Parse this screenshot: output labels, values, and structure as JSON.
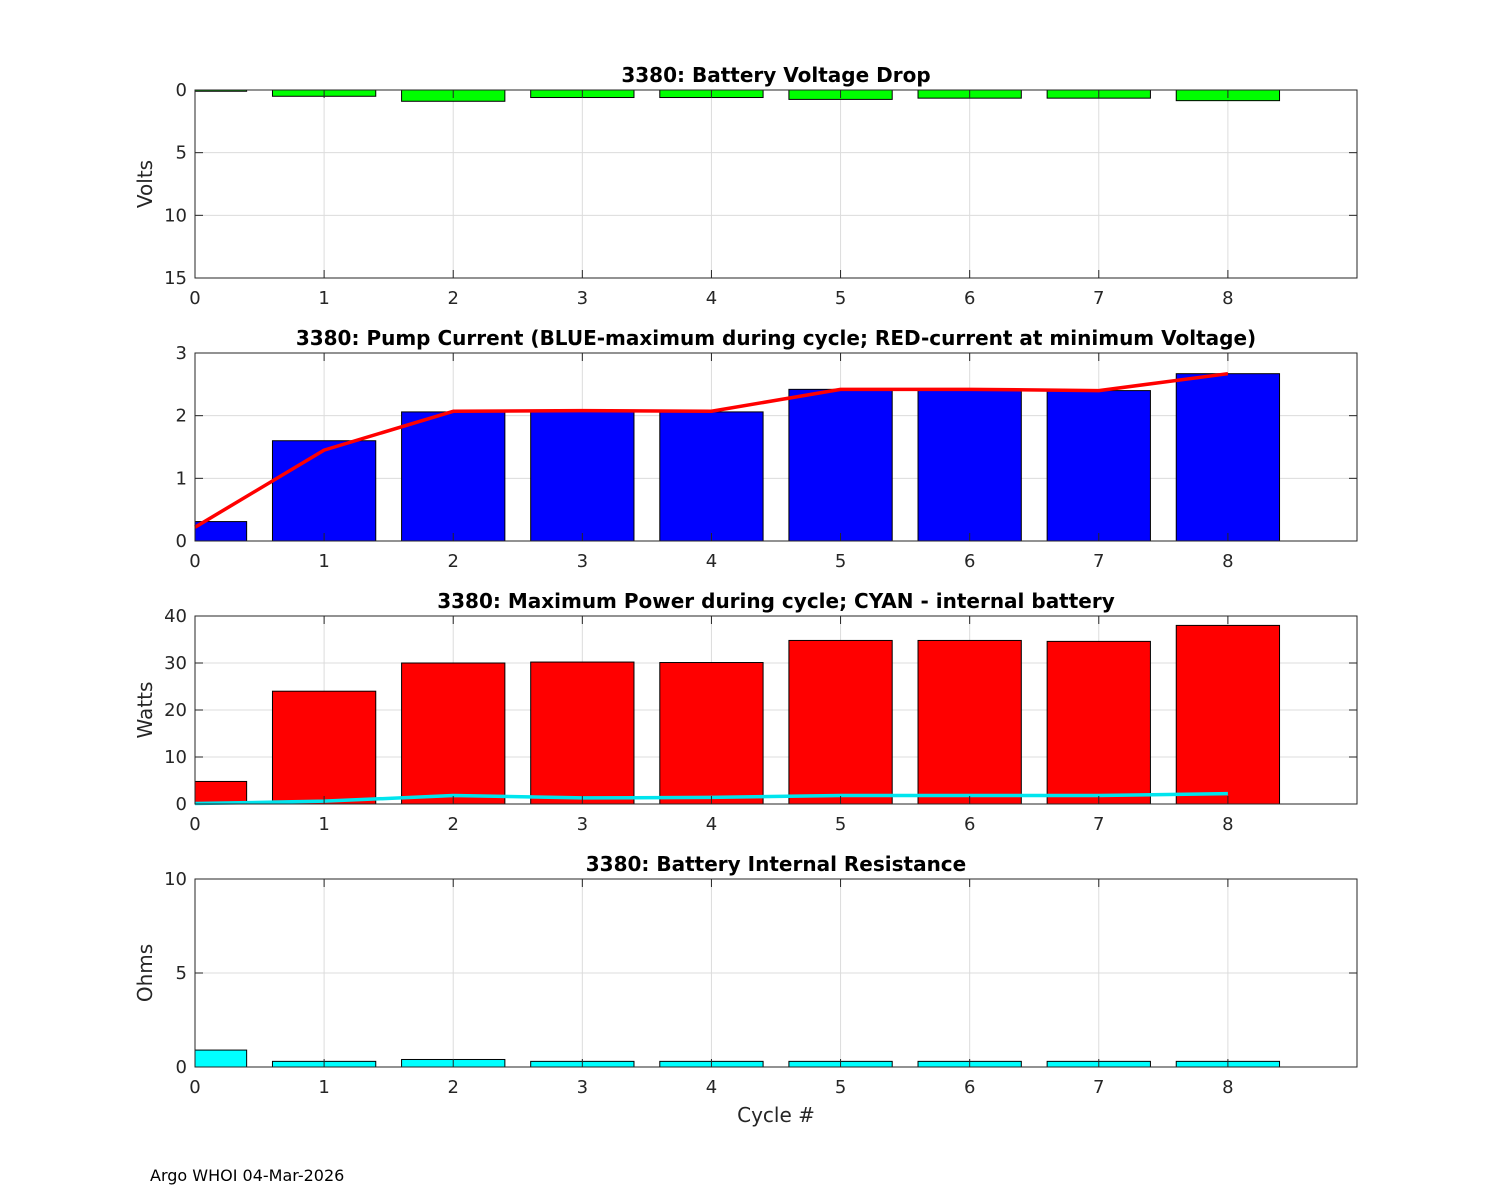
{
  "footer": "Argo WHOI 04-Mar-2026",
  "chart_data": [
    {
      "type": "bar",
      "title": "3380: Battery Voltage Drop",
      "xlabel": "",
      "ylabel": "Volts",
      "y_reversed": true,
      "xlim": [
        0,
        9
      ],
      "ylim": [
        0,
        15
      ],
      "xticks": [
        0,
        1,
        2,
        3,
        4,
        5,
        6,
        7,
        8
      ],
      "yticks": [
        0,
        5,
        10,
        15
      ],
      "bar_color": "#00ff00",
      "categories": [
        0,
        1,
        2,
        3,
        4,
        5,
        6,
        7,
        8
      ],
      "values": [
        0.1,
        0.5,
        0.9,
        0.6,
        0.6,
        0.75,
        0.65,
        0.65,
        0.85
      ],
      "lines": []
    },
    {
      "type": "bar",
      "title": "3380: Pump Current (BLUE-maximum during cycle; RED-current at minimum Voltage)",
      "xlabel": "",
      "ylabel": "",
      "y_reversed": false,
      "xlim": [
        0,
        9
      ],
      "ylim": [
        0,
        3
      ],
      "xticks": [
        0,
        1,
        2,
        3,
        4,
        5,
        6,
        7,
        8
      ],
      "yticks": [
        0,
        1,
        2,
        3
      ],
      "bar_color": "#0000ff",
      "categories": [
        0,
        1,
        2,
        3,
        4,
        5,
        6,
        7,
        8
      ],
      "values": [
        0.31,
        1.6,
        2.06,
        2.07,
        2.06,
        2.42,
        2.42,
        2.4,
        2.67
      ],
      "lines": [
        {
          "name": "current at minimum Voltage",
          "color": "#ff0000",
          "x": [
            0,
            1,
            2,
            3,
            4,
            5,
            6,
            7,
            8
          ],
          "values": [
            0.22,
            1.45,
            2.07,
            2.08,
            2.07,
            2.42,
            2.42,
            2.4,
            2.67
          ]
        }
      ]
    },
    {
      "type": "bar",
      "title": "3380: Maximum Power during cycle; CYAN - internal battery",
      "xlabel": "",
      "ylabel": "Watts",
      "y_reversed": false,
      "xlim": [
        0,
        9
      ],
      "ylim": [
        0,
        40
      ],
      "xticks": [
        0,
        1,
        2,
        3,
        4,
        5,
        6,
        7,
        8
      ],
      "yticks": [
        0,
        10,
        20,
        30,
        40
      ],
      "bar_color": "#ff0000",
      "categories": [
        0,
        1,
        2,
        3,
        4,
        5,
        6,
        7,
        8
      ],
      "values": [
        4.8,
        24,
        30,
        30.2,
        30.1,
        34.8,
        34.8,
        34.6,
        38
      ],
      "lines": [
        {
          "name": "internal battery",
          "color": "#00e5ee",
          "x": [
            0,
            1,
            2,
            3,
            4,
            5,
            6,
            7,
            8
          ],
          "values": [
            0.1,
            0.6,
            1.8,
            1.3,
            1.4,
            1.8,
            1.8,
            1.8,
            2.2
          ]
        }
      ]
    },
    {
      "type": "bar",
      "title": "3380: Battery Internal Resistance",
      "xlabel": "Cycle #",
      "ylabel": "Ohms",
      "y_reversed": false,
      "xlim": [
        0,
        9
      ],
      "ylim": [
        0,
        10
      ],
      "xticks": [
        0,
        1,
        2,
        3,
        4,
        5,
        6,
        7,
        8
      ],
      "yticks": [
        0,
        5,
        10
      ],
      "bar_color": "#00ffff",
      "categories": [
        0,
        1,
        2,
        3,
        4,
        5,
        6,
        7,
        8
      ],
      "values": [
        0.9,
        0.3,
        0.4,
        0.3,
        0.3,
        0.3,
        0.3,
        0.3,
        0.3
      ],
      "lines": []
    }
  ]
}
